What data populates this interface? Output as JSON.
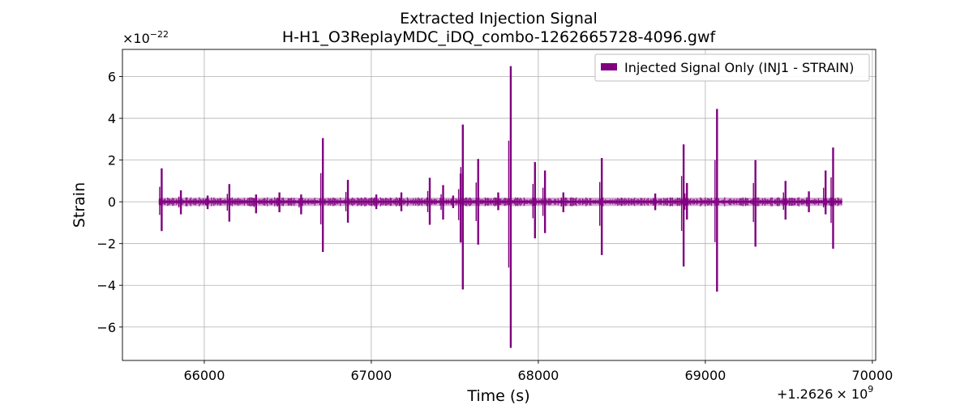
{
  "chart_data": {
    "type": "line",
    "title": "Extracted Injection Signal",
    "subtitle": "H-H1_O3ReplayMDC_iDQ_combo-1262665728-4096.gwf",
    "xlabel": "Time (s)",
    "ylabel": "Strain",
    "x_offset_label": "+1.2626",
    "x_offset_base": "× 10",
    "x_offset_exp": "9",
    "y_scale_label": "×10",
    "y_scale_exp": "−22",
    "xlim": [
      65510,
      70020
    ],
    "ylim": [
      -7.6,
      7.3
    ],
    "x_ticks": [
      {
        "value": 66000,
        "label": "66000"
      },
      {
        "value": 67000,
        "label": "67000"
      },
      {
        "value": 68000,
        "label": "68000"
      },
      {
        "value": 69000,
        "label": "69000"
      },
      {
        "value": 70000,
        "label": "70000"
      }
    ],
    "y_ticks": [
      {
        "value": 6,
        "label": "6"
      },
      {
        "value": 4,
        "label": "4"
      },
      {
        "value": 2,
        "label": "2"
      },
      {
        "value": 0,
        "label": "0"
      },
      {
        "value": -2,
        "label": "−2"
      },
      {
        "value": -4,
        "label": "−4"
      },
      {
        "value": -6,
        "label": "−6"
      }
    ],
    "grid": true,
    "legend_position": "top-right",
    "series": [
      {
        "name": "Injected Signal Only (INJ1 - STRAIN)",
        "color": "#800080",
        "baseline_range": [
          65730,
          69820
        ],
        "noise_band": [
          -0.2,
          0.2
        ],
        "spikes": [
          {
            "x": 65745,
            "ymax": 1.6,
            "ymin": -1.4
          },
          {
            "x": 65860,
            "ymax": 0.55,
            "ymin": -0.6
          },
          {
            "x": 66020,
            "ymax": 0.3,
            "ymin": -0.35
          },
          {
            "x": 66150,
            "ymax": 0.85,
            "ymin": -0.95
          },
          {
            "x": 66310,
            "ymax": 0.35,
            "ymin": -0.55
          },
          {
            "x": 66450,
            "ymax": 0.45,
            "ymin": -0.5
          },
          {
            "x": 66580,
            "ymax": 0.35,
            "ymin": -0.6
          },
          {
            "x": 66710,
            "ymax": 3.05,
            "ymin": -2.4
          },
          {
            "x": 66860,
            "ymax": 1.05,
            "ymin": -1.0
          },
          {
            "x": 67030,
            "ymax": 0.35,
            "ymin": -0.35
          },
          {
            "x": 67180,
            "ymax": 0.45,
            "ymin": -0.45
          },
          {
            "x": 67350,
            "ymax": 1.15,
            "ymin": -1.1
          },
          {
            "x": 67430,
            "ymax": 0.8,
            "ymin": -0.85
          },
          {
            "x": 67490,
            "ymax": 0.3,
            "ymin": -0.3
          },
          {
            "x": 67535,
            "ymax": 1.35,
            "ymin": -1.95
          },
          {
            "x": 67548,
            "ymax": 3.7,
            "ymin": -4.2
          },
          {
            "x": 67640,
            "ymax": 2.05,
            "ymin": -2.05
          },
          {
            "x": 67760,
            "ymax": 0.45,
            "ymin": -0.4
          },
          {
            "x": 67835,
            "ymax": 6.5,
            "ymin": -7.0
          },
          {
            "x": 67980,
            "ymax": 1.9,
            "ymin": -1.75
          },
          {
            "x": 68040,
            "ymax": 1.5,
            "ymin": -1.5
          },
          {
            "x": 68150,
            "ymax": 0.45,
            "ymin": -0.5
          },
          {
            "x": 68380,
            "ymax": 2.1,
            "ymin": -2.55
          },
          {
            "x": 68700,
            "ymax": 0.4,
            "ymin": -0.4
          },
          {
            "x": 68870,
            "ymax": 2.75,
            "ymin": -3.1
          },
          {
            "x": 68890,
            "ymax": 0.9,
            "ymin": -0.85
          },
          {
            "x": 69070,
            "ymax": 4.45,
            "ymin": -4.3
          },
          {
            "x": 69300,
            "ymax": 2.0,
            "ymin": -2.15
          },
          {
            "x": 69480,
            "ymax": 1.0,
            "ymin": -0.85
          },
          {
            "x": 69620,
            "ymax": 0.5,
            "ymin": -0.5
          },
          {
            "x": 69720,
            "ymax": 1.5,
            "ymin": -0.6
          },
          {
            "x": 69765,
            "ymax": 2.6,
            "ymin": -2.25
          }
        ]
      }
    ]
  }
}
